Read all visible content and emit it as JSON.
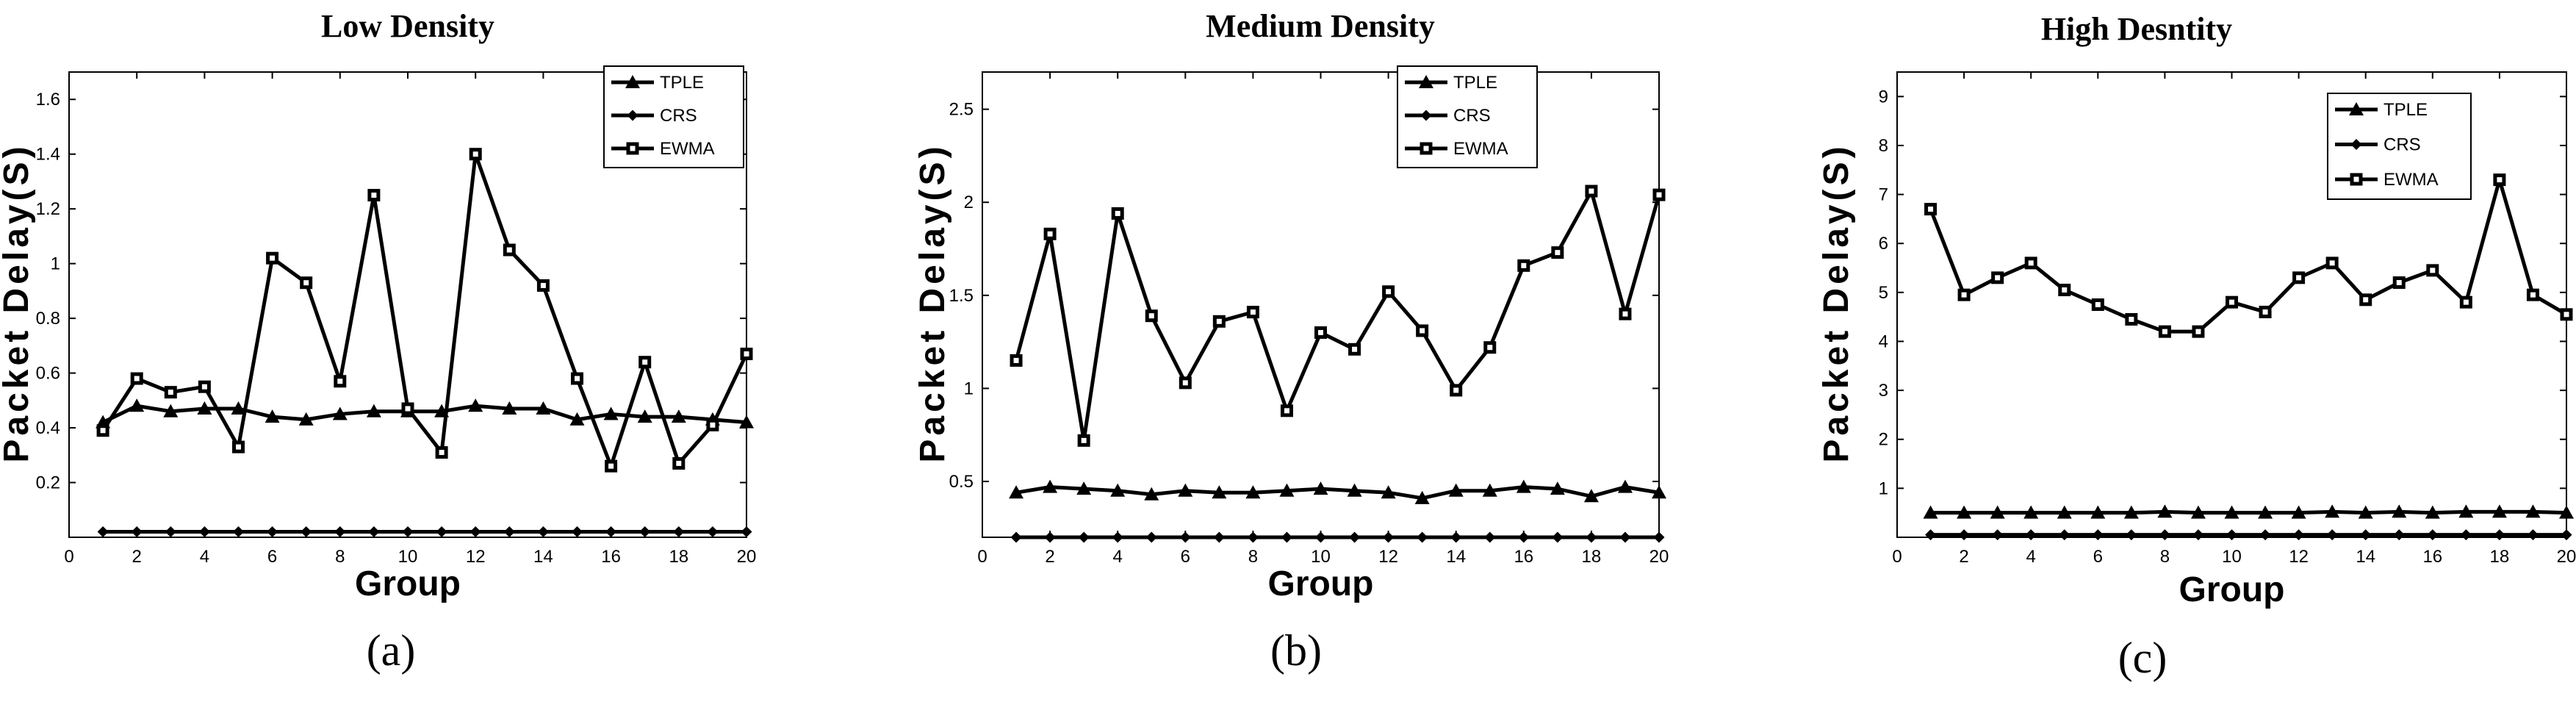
{
  "chart_data": [
    {
      "type": "line",
      "title": "Low Density",
      "caption": "(a)",
      "xlabel": "Group",
      "ylabel": "Packet Delay(S)",
      "xlim": [
        0,
        20
      ],
      "ylim": [
        0,
        1.7
      ],
      "xticks": [
        0,
        2,
        4,
        6,
        8,
        10,
        12,
        14,
        16,
        18,
        20
      ],
      "yticks": [
        0.2,
        0.4,
        0.6,
        0.8,
        1,
        1.2,
        1.4,
        1.6
      ],
      "ytick_labels": [
        "0.2",
        "0.4",
        "0.6",
        "0.8",
        "1",
        "1.2",
        "1.4",
        "1.6"
      ],
      "legend_position": "top-right",
      "x": [
        1,
        2,
        3,
        4,
        5,
        6,
        7,
        8,
        9,
        10,
        11,
        12,
        13,
        14,
        15,
        16,
        17,
        18,
        19,
        20
      ],
      "series": [
        {
          "name": "TPLE",
          "marker": "triangle",
          "values": [
            0.42,
            0.48,
            0.46,
            0.47,
            0.47,
            0.44,
            0.43,
            0.45,
            0.46,
            0.46,
            0.46,
            0.48,
            0.47,
            0.47,
            0.43,
            0.45,
            0.44,
            0.44,
            0.43,
            0.42
          ]
        },
        {
          "name": "CRS",
          "marker": "diamond",
          "values": [
            0.02,
            0.02,
            0.02,
            0.02,
            0.02,
            0.02,
            0.02,
            0.02,
            0.02,
            0.02,
            0.02,
            0.02,
            0.02,
            0.02,
            0.02,
            0.02,
            0.02,
            0.02,
            0.02,
            0.02
          ]
        },
        {
          "name": "EWMA",
          "marker": "square",
          "values": [
            0.39,
            0.58,
            0.53,
            0.55,
            0.33,
            1.02,
            0.93,
            0.57,
            1.25,
            0.47,
            0.31,
            1.4,
            1.05,
            0.92,
            0.58,
            0.26,
            0.64,
            0.27,
            0.41,
            0.67
          ]
        }
      ]
    },
    {
      "type": "line",
      "title": "Medium Density",
      "caption": "(b)",
      "xlabel": "Group",
      "ylabel": "Packet Delay(S)",
      "xlim": [
        0,
        20
      ],
      "ylim": [
        0.2,
        2.7
      ],
      "xticks": [
        0,
        2,
        4,
        6,
        8,
        10,
        12,
        14,
        16,
        18,
        20
      ],
      "yticks": [
        0.5,
        1,
        1.5,
        2,
        2.5
      ],
      "ytick_labels": [
        "0.5",
        "1",
        "1.5",
        "2",
        "2.5"
      ],
      "legend_position": "top-right",
      "x": [
        1,
        2,
        3,
        4,
        5,
        6,
        7,
        8,
        9,
        10,
        11,
        12,
        13,
        14,
        15,
        16,
        17,
        18,
        19,
        20
      ],
      "series": [
        {
          "name": "TPLE",
          "marker": "triangle",
          "values": [
            0.44,
            0.47,
            0.46,
            0.45,
            0.43,
            0.45,
            0.44,
            0.44,
            0.45,
            0.46,
            0.45,
            0.44,
            0.41,
            0.45,
            0.45,
            0.47,
            0.46,
            0.42,
            0.47,
            0.44
          ]
        },
        {
          "name": "CRS",
          "marker": "diamond",
          "values": [
            0.2,
            0.2,
            0.2,
            0.2,
            0.2,
            0.2,
            0.2,
            0.2,
            0.2,
            0.2,
            0.2,
            0.2,
            0.2,
            0.2,
            0.2,
            0.2,
            0.2,
            0.2,
            0.2,
            0.2
          ]
        },
        {
          "name": "EWMA",
          "marker": "square",
          "values": [
            1.15,
            1.83,
            0.72,
            1.94,
            1.39,
            1.03,
            1.36,
            1.41,
            0.88,
            1.3,
            1.21,
            1.52,
            1.31,
            0.99,
            1.22,
            1.66,
            1.73,
            2.06,
            1.4,
            2.04
          ]
        }
      ]
    },
    {
      "type": "line",
      "title": "High Desntity",
      "caption": "(c)",
      "xlabel": "Group",
      "ylabel": "Packet Delay(S)",
      "xlim": [
        0,
        20
      ],
      "ylim": [
        0,
        9.5
      ],
      "xticks": [
        0,
        2,
        4,
        6,
        8,
        10,
        12,
        14,
        16,
        18,
        20
      ],
      "yticks": [
        1,
        2,
        3,
        4,
        5,
        6,
        7,
        8,
        9
      ],
      "ytick_labels": [
        "1",
        "2",
        "3",
        "4",
        "5",
        "6",
        "7",
        "8",
        "9"
      ],
      "legend_position": "top-center",
      "x": [
        1,
        2,
        3,
        4,
        5,
        6,
        7,
        8,
        9,
        10,
        11,
        12,
        13,
        14,
        15,
        16,
        17,
        18,
        19,
        20
      ],
      "series": [
        {
          "name": "TPLE",
          "marker": "triangle",
          "values": [
            0.5,
            0.5,
            0.5,
            0.5,
            0.5,
            0.5,
            0.5,
            0.52,
            0.5,
            0.5,
            0.5,
            0.5,
            0.52,
            0.5,
            0.52,
            0.5,
            0.52,
            0.52,
            0.52,
            0.5
          ]
        },
        {
          "name": "CRS",
          "marker": "diamond",
          "values": [
            0.05,
            0.05,
            0.05,
            0.05,
            0.05,
            0.05,
            0.05,
            0.05,
            0.05,
            0.05,
            0.05,
            0.05,
            0.05,
            0.05,
            0.05,
            0.05,
            0.05,
            0.05,
            0.05,
            0.05
          ]
        },
        {
          "name": "EWMA",
          "marker": "square",
          "values": [
            6.7,
            4.95,
            5.3,
            5.6,
            5.05,
            4.75,
            4.45,
            4.2,
            4.2,
            4.8,
            4.6,
            5.3,
            5.6,
            4.85,
            5.2,
            5.45,
            4.8,
            7.3,
            4.95,
            4.55
          ]
        }
      ]
    }
  ]
}
